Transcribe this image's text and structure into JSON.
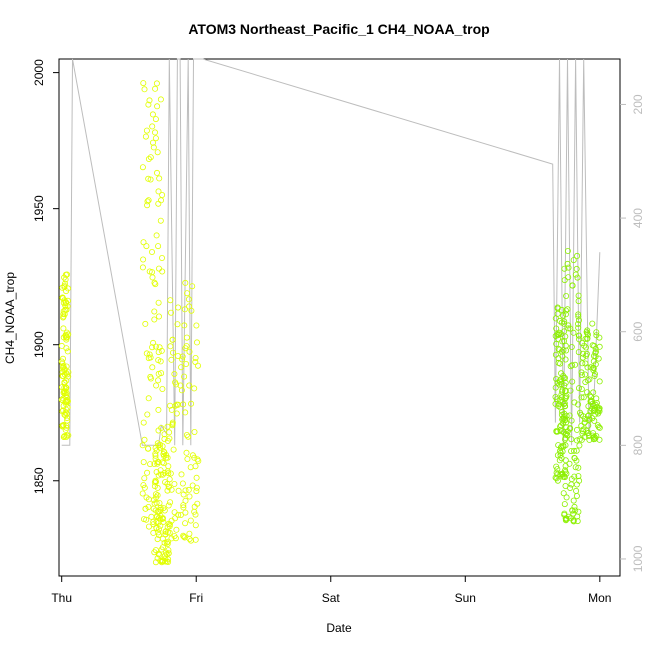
{
  "chart_data": {
    "type": "scatter",
    "title": "ATOM3 Northeast_Pacific_1 CH4_NOAA_trop",
    "xlabel": "Date",
    "ylabel": "CH4_NOAA_trop",
    "x_ticks": [
      "Thu",
      "Fri",
      "Sat",
      "Sun",
      "Mon"
    ],
    "x_tick_positions_days": [
      0,
      1,
      2,
      3,
      4
    ],
    "xlim_days": [
      -0.02,
      4.15
    ],
    "ylim": [
      1815,
      2005
    ],
    "y_ticks": [
      1850,
      1900,
      1950,
      2000
    ],
    "y2_ticks": [
      200,
      400,
      600,
      800,
      1000
    ],
    "y2lim_reversed": [
      1030,
      120
    ],
    "grid": false,
    "series": [
      {
        "kind": "points",
        "color": "#e1ff00",
        "clusters": [
          {
            "x": [
              0.0,
              0.05
            ],
            "y": [
              1866,
              1926
            ]
          },
          {
            "x": [
              0.6,
              0.75
            ],
            "y": [
              1833,
              1998
            ]
          },
          {
            "x": [
              0.68,
              0.8
            ],
            "y": [
              1820,
              1870
            ]
          },
          {
            "x": [
              0.8,
              1.02
            ],
            "y": [
              1828,
              1927
            ]
          }
        ]
      },
      {
        "kind": "points",
        "color": "#8cf000",
        "clusters": [
          {
            "x": [
              3.67,
              3.75
            ],
            "y": [
              1850,
              1916
            ]
          },
          {
            "x": [
              3.73,
              3.85
            ],
            "y": [
              1835,
              1935
            ]
          },
          {
            "x": [
              3.85,
              4.0
            ],
            "y": [
              1865,
              1910
            ]
          }
        ]
      },
      {
        "kind": "line",
        "color": "#bdbdbd",
        "axis": "right",
        "x": [
          0.0,
          0.02,
          0.04,
          0.06,
          0.08,
          0.6,
          0.72,
          0.74,
          0.74,
          0.78,
          0.78,
          0.8,
          0.8,
          0.84,
          0.86,
          0.88,
          0.9,
          0.94,
          0.96,
          0.98,
          1.0,
          1.02,
          1.05,
          3.65,
          3.67,
          3.7,
          3.73,
          3.76,
          3.79,
          3.82,
          3.85,
          3.88,
          3.92,
          3.96,
          4.0
        ],
        "y": [
          800,
          800,
          800,
          800,
          120,
          800,
          800,
          765,
          765,
          780,
          780,
          120,
          120,
          800,
          120,
          120,
          800,
          120,
          800,
          120,
          120,
          120,
          120,
          305,
          760,
          120,
          800,
          120,
          800,
          120,
          760,
          120,
          780,
          700,
          460
        ]
      }
    ]
  }
}
